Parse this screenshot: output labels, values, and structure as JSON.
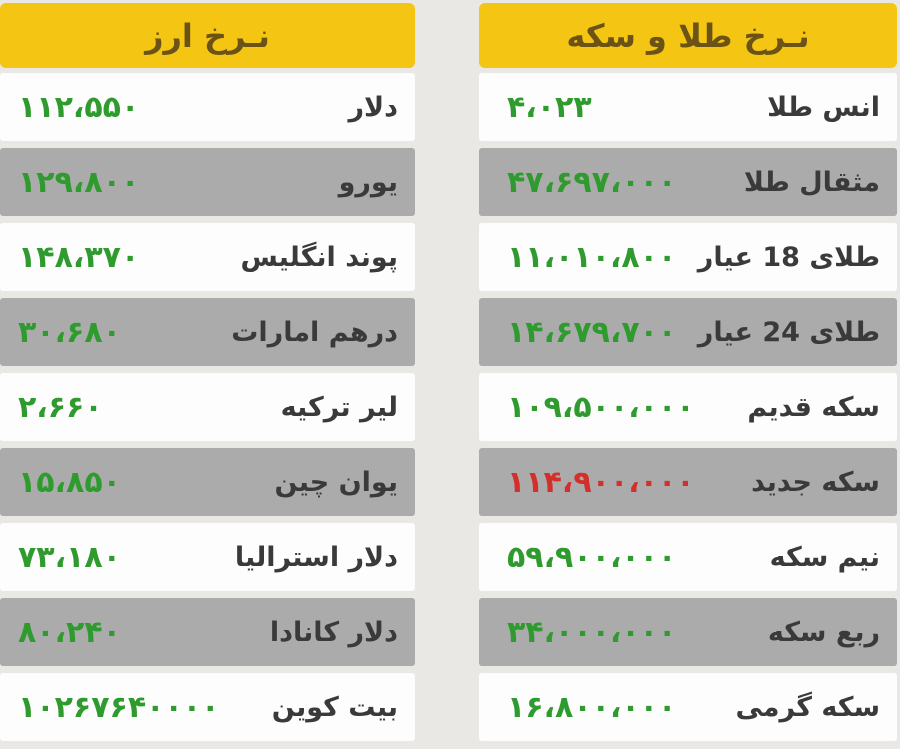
{
  "board_title": "rates-board",
  "colors": {
    "page_bg": "#eae8e5",
    "header_bg": "#f5c514",
    "header_text": "#6b5316",
    "row_white": "#fdfdfd",
    "row_gray": "#ababab",
    "label_text": "#3a3a3a",
    "value_green": "#2f9b2f",
    "value_red": "#d3302c"
  },
  "tables": [
    {
      "id": "gold-and-coin",
      "title": "نـرخ طلا و سکه",
      "rows": [
        {
          "label": "انس طلا",
          "value": "۴،۰۲۳",
          "value_color": "green"
        },
        {
          "label": "مثقال طلا",
          "value": "۴۷،۶۹۷،۰۰۰",
          "value_color": "green"
        },
        {
          "label": "طلای 18 عیار",
          "value": "۱۱،۰۱۰،۸۰۰",
          "value_color": "green"
        },
        {
          "label": "طلای 24 عیار",
          "value": "۱۴،۶۷۹،۷۰۰",
          "value_color": "green"
        },
        {
          "label": "سکه قدیم",
          "value": "۱۰۹،۵۰۰،۰۰۰",
          "value_color": "green"
        },
        {
          "label": "سکه جدید",
          "value": "۱۱۴،۹۰۰،۰۰۰",
          "value_color": "red"
        },
        {
          "label": "نیم سکه",
          "value": "۵۹،۹۰۰،۰۰۰",
          "value_color": "green"
        },
        {
          "label": "ربع سکه",
          "value": "۳۴،۰۰۰،۰۰۰",
          "value_color": "green"
        },
        {
          "label": "سکه گرمی",
          "value": "۱۶،۸۰۰،۰۰۰",
          "value_color": "green"
        }
      ]
    },
    {
      "id": "currency",
      "title": "نـرخ ارز",
      "rows": [
        {
          "label": "دلار",
          "value": "۱۱۲،۵۵۰",
          "value_color": "green"
        },
        {
          "label": "یورو",
          "value": "۱۲۹،۸۰۰",
          "value_color": "green"
        },
        {
          "label": "پوند انگلیس",
          "value": "۱۴۸،۳۷۰",
          "value_color": "green"
        },
        {
          "label": "درهم امارات",
          "value": "۳۰،۶۸۰",
          "value_color": "green"
        },
        {
          "label": "لیر ترکیه",
          "value": "۲،۶۶۰",
          "value_color": "green"
        },
        {
          "label": "یوان چین",
          "value": "۱۵،۸۵۰",
          "value_color": "green"
        },
        {
          "label": "دلار استرالیا",
          "value": "۷۳،۱۸۰",
          "value_color": "green"
        },
        {
          "label": "دلار کانادا",
          "value": "۸۰،۲۴۰",
          "value_color": "green"
        },
        {
          "label": "بیت کوین",
          "value": "۱۰۲۶۷۶۴۰۰۰۰",
          "value_color": "green"
        }
      ]
    }
  ],
  "chart_data": [
    {
      "type": "table",
      "title": "نـرخ طلا و سکه",
      "columns": [
        "item",
        "price"
      ],
      "rows": [
        [
          "انس طلا",
          4023
        ],
        [
          "مثقال طلا",
          47697000
        ],
        [
          "طلای 18 عیار",
          11010800
        ],
        [
          "طلای 24 عیار",
          14679700
        ],
        [
          "سکه قدیم",
          109500000
        ],
        [
          "سکه جدید",
          114900000
        ],
        [
          "نیم سکه",
          59900000
        ],
        [
          "ربع سکه",
          34000000
        ],
        [
          "سکه گرمی",
          16800000
        ]
      ],
      "notes": "value of سکه جدید shown in red; all others green; Persian (Eastern Arabic-Indic) digits"
    },
    {
      "type": "table",
      "title": "نـرخ ارز",
      "columns": [
        "currency",
        "rate"
      ],
      "rows": [
        [
          "دلار",
          112550
        ],
        [
          "یورو",
          129800
        ],
        [
          "پوند انگلیس",
          148370
        ],
        [
          "درهم امارات",
          30680
        ],
        [
          "لیر ترکیه",
          2660
        ],
        [
          "یوان چین",
          15850
        ],
        [
          "دلار استرالیا",
          73180
        ],
        [
          "دلار کانادا",
          80240
        ],
        [
          "بیت کوین",
          10267640000
        ]
      ],
      "notes": "all values green; Persian (Eastern Arabic-Indic) digits"
    }
  ]
}
